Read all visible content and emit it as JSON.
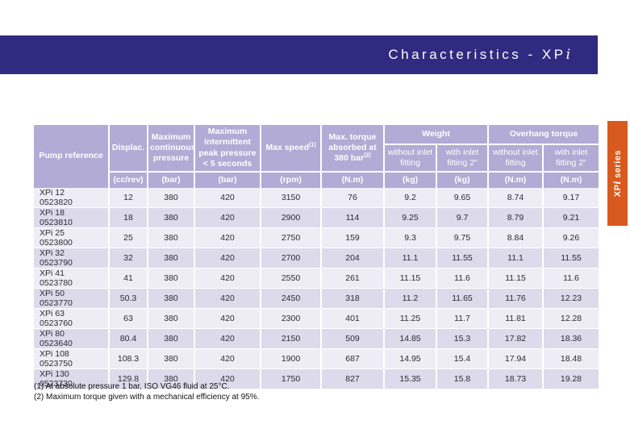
{
  "title_bar": {
    "title_prefix": "Characteristics - XP",
    "title_i": "i"
  },
  "side_tab": {
    "label_prefix": "XP",
    "label_i": "i",
    "label_suffix": " series"
  },
  "colors": {
    "title_bar_bg": "#2e2b80",
    "side_tab_bg": "#d95a1e",
    "table_header_bg": "#b1abd5",
    "row_light": "#eeedf6",
    "row_dark": "#dddaeb"
  },
  "table": {
    "header": {
      "pump_reference": "Pump reference",
      "displac": "Displac.",
      "max_cont": "Maximum continuous pressure",
      "max_int": "Maximum intermittent peak pressure < 5 seconds",
      "max_speed": "Max speed",
      "max_speed_sup": "(1)",
      "max_torque": "Max. torque absorbed at 380 bar",
      "max_torque_sup": "(2)",
      "weight_group": "Weight",
      "overhang_group": "Overhang torque",
      "without_fitting": "without inlet fitting",
      "with_fitting": "with inlet fitting 2\"",
      "units": {
        "cc_rev": "(cc/rev)",
        "bar": "(bar)",
        "rpm": "(rpm)",
        "nm": "(N.m)",
        "kg": "(kg)"
      }
    },
    "rows": [
      {
        "model": "XPi 12",
        "code": "0523820",
        "values": [
          "12",
          "380",
          "420",
          "3150",
          "76",
          "9.2",
          "9.65",
          "8.74",
          "9.17"
        ]
      },
      {
        "model": "XPi 18",
        "code": "0523810",
        "values": [
          "18",
          "380",
          "420",
          "2900",
          "114",
          "9.25",
          "9.7",
          "8.79",
          "9.21"
        ]
      },
      {
        "model": "XPi 25",
        "code": "0523800",
        "values": [
          "25",
          "380",
          "420",
          "2750",
          "159",
          "9.3",
          "9.75",
          "8.84",
          "9.26"
        ]
      },
      {
        "model": "XPi 32",
        "code": "0523790",
        "values": [
          "32",
          "380",
          "420",
          "2700",
          "204",
          "11.1",
          "11.55",
          "11.1",
          "11.55"
        ]
      },
      {
        "model": "XPi 41",
        "code": "0523780",
        "values": [
          "41",
          "380",
          "420",
          "2550",
          "261",
          "11.15",
          "11.6",
          "11.15",
          "11.6"
        ]
      },
      {
        "model": "XPi 50",
        "code": "0523770",
        "values": [
          "50.3",
          "380",
          "420",
          "2450",
          "318",
          "11.2",
          "11.65",
          "11.76",
          "12.23"
        ]
      },
      {
        "model": "XPi 63",
        "code": "0523760",
        "values": [
          "63",
          "380",
          "420",
          "2300",
          "401",
          "11.25",
          "11.7",
          "11.81",
          "12.28"
        ]
      },
      {
        "model": "XPi 80",
        "code": "0523640",
        "values": [
          "80.4",
          "380",
          "420",
          "2150",
          "509",
          "14.85",
          "15.3",
          "17.82",
          "18.36"
        ]
      },
      {
        "model": "XPi 108",
        "code": "0523750",
        "values": [
          "108.3",
          "380",
          "420",
          "1900",
          "687",
          "14.95",
          "15.4",
          "17.94",
          "18.48"
        ]
      },
      {
        "model": "XPi 130",
        "code": "0523730",
        "values": [
          "129.8",
          "380",
          "420",
          "1750",
          "827",
          "15.35",
          "15.8",
          "18.73",
          "19.28"
        ]
      }
    ]
  },
  "footnotes": [
    "(1) At absolute pressure 1 bar, ISO VG46 fluid at 25°C.",
    "(2) Maximum torque given with a mechanical efficiency at 95%."
  ]
}
